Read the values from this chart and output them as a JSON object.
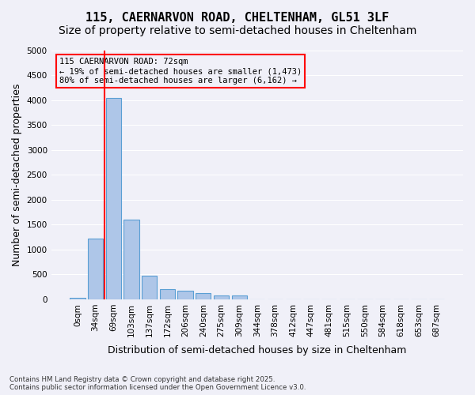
{
  "title_line1": "115, CAERNARVON ROAD, CHELTENHAM, GL51 3LF",
  "title_line2": "Size of property relative to semi-detached houses in Cheltenham",
  "xlabel": "Distribution of semi-detached houses by size in Cheltenham",
  "ylabel": "Number of semi-detached properties",
  "footnote": "Contains HM Land Registry data © Crown copyright and database right 2025.\nContains public sector information licensed under the Open Government Licence v3.0.",
  "bar_labels": [
    "0sqm",
    "34sqm",
    "69sqm",
    "103sqm",
    "137sqm",
    "172sqm",
    "206sqm",
    "240sqm",
    "275sqm",
    "309sqm",
    "344sqm",
    "378sqm",
    "412sqm",
    "447sqm",
    "481sqm",
    "515sqm",
    "550sqm",
    "584sqm",
    "618sqm",
    "653sqm",
    "687sqm"
  ],
  "bar_values": [
    30,
    1220,
    4050,
    1600,
    470,
    210,
    175,
    120,
    80,
    80,
    0,
    0,
    0,
    0,
    0,
    0,
    0,
    0,
    0,
    0,
    0
  ],
  "bar_color": "#aec6e8",
  "bar_edge_color": "#5a9fd4",
  "vline_color": "red",
  "property_label": "115 CAERNARVON ROAD: 72sqm",
  "annotation_smaller": "← 19% of semi-detached houses are smaller (1,473)",
  "annotation_larger": "80% of semi-detached houses are larger (6,162) →",
  "annotation_box_color": "red",
  "ylim": [
    0,
    5000
  ],
  "yticks": [
    0,
    500,
    1000,
    1500,
    2000,
    2500,
    3000,
    3500,
    4000,
    4500,
    5000
  ],
  "background_color": "#f0f0f8",
  "grid_color": "#ffffff",
  "title_fontsize": 11,
  "subtitle_fontsize": 10,
  "axis_label_fontsize": 9,
  "tick_fontsize": 7.5
}
